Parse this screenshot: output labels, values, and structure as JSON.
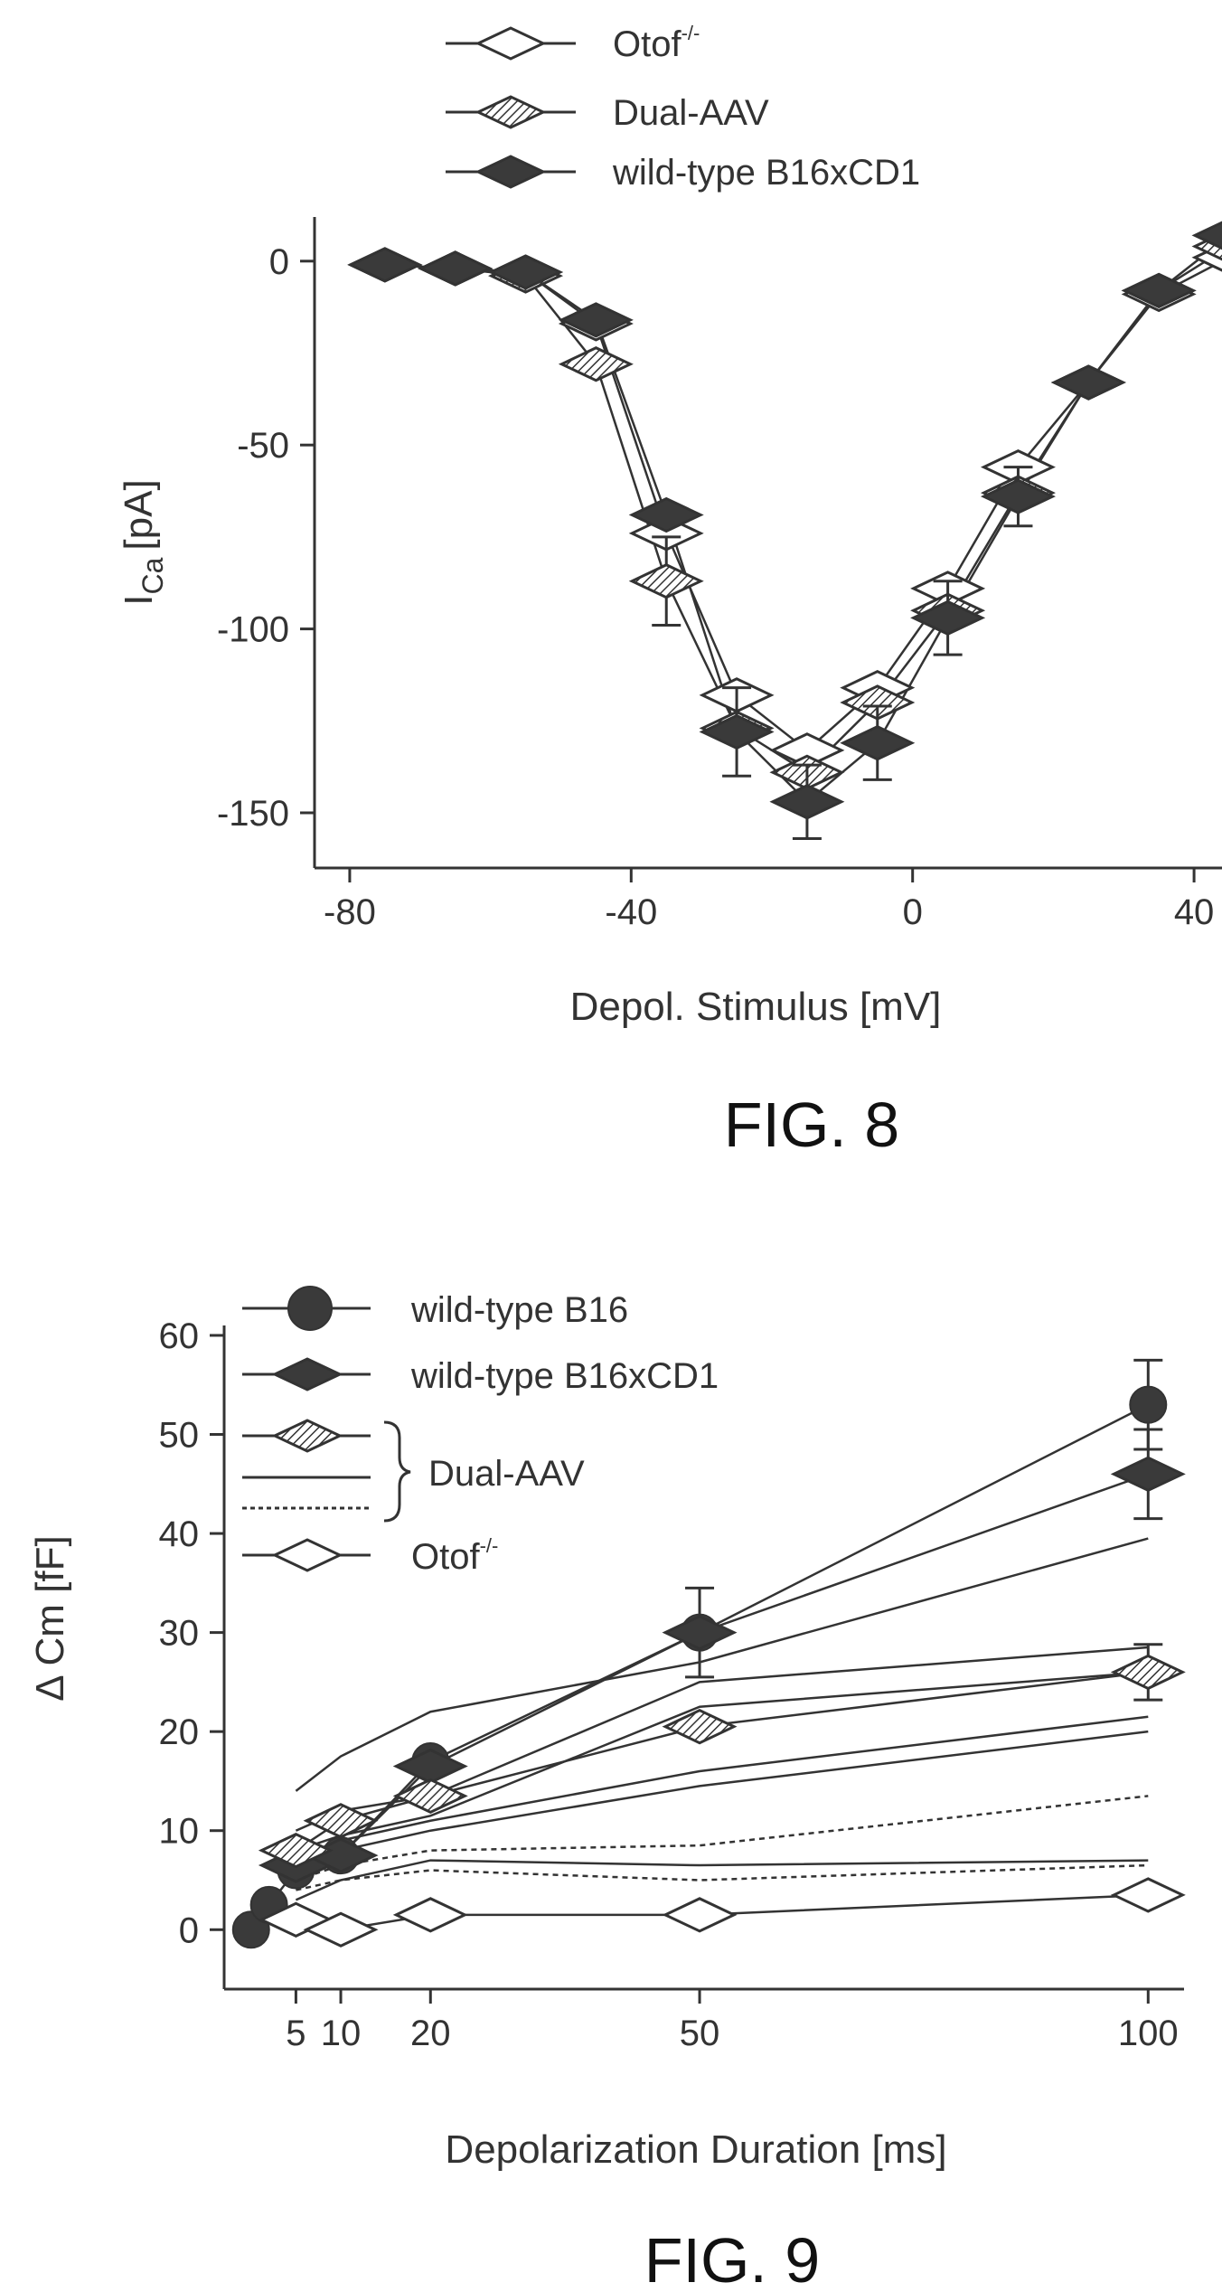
{
  "chart_data": [
    {
      "figure_label": "FIG. 8",
      "type": "line",
      "xlabel": "Depol. Stimulus [mV]",
      "ylabel_main": "I",
      "ylabel_sub": "Ca",
      "ylabel_unit": "[pA]",
      "xlim": [
        -85,
        45
      ],
      "ylim": [
        -165,
        12
      ],
      "xticks": [
        -80,
        -40,
        0,
        40
      ],
      "xtick_labels": [
        "-80",
        "-40",
        "0",
        "40"
      ],
      "yticks": [
        0,
        -50,
        -100,
        -150
      ],
      "ytick_labels": [
        "0",
        "-50",
        "-100",
        "-150"
      ],
      "grid": false,
      "legend_position": "top",
      "series": [
        {
          "name": "Otof",
          "name_sup": "-/-",
          "marker": "diamond-open",
          "x": [
            -75,
            -65,
            -55,
            -45,
            -35,
            -25,
            -15,
            -5,
            5,
            15,
            25,
            35,
            45
          ],
          "y": [
            -1,
            -2,
            -3,
            -17,
            -74,
            -118,
            -133,
            -116,
            -89,
            -56,
            -33,
            -9,
            1
          ],
          "yerr": [
            0,
            0,
            0,
            0,
            0,
            0,
            0,
            0,
            0,
            0,
            0,
            0,
            0
          ]
        },
        {
          "name": "Dual-AAV",
          "marker": "diamond-hatched",
          "x": [
            -75,
            -65,
            -55,
            -45,
            -35,
            -25,
            -15,
            -5,
            5,
            15,
            25,
            35,
            45
          ],
          "y": [
            -1,
            -2,
            -4,
            -28,
            -87,
            -127,
            -139,
            -120,
            -95,
            -63,
            -33,
            -8,
            4
          ],
          "yerr": [
            0,
            0,
            0,
            0,
            12,
            0,
            0,
            0,
            0,
            0,
            0,
            0,
            0
          ]
        },
        {
          "name": "wild-type B16xCD1",
          "marker": "diamond-filled",
          "x": [
            -75,
            -65,
            -55,
            -45,
            -35,
            -25,
            -15,
            -5,
            5,
            15,
            25,
            35,
            45
          ],
          "y": [
            -1,
            -2,
            -3,
            -16,
            -69,
            -128,
            -147,
            -131,
            -97,
            -64,
            -33,
            -8,
            7
          ],
          "yerr": [
            0,
            0,
            0,
            0,
            0,
            12,
            10,
            10,
            10,
            8,
            0,
            0,
            0
          ]
        }
      ]
    },
    {
      "figure_label": "FIG. 9",
      "type": "line",
      "xlabel": "Depolarization Duration [ms]",
      "ylabel": "Δ Cm [fF]",
      "xlim": [
        -3,
        104
      ],
      "ylim": [
        -6,
        61
      ],
      "xticks": [
        5,
        10,
        20,
        50,
        100
      ],
      "xtick_labels": [
        "5",
        "10",
        "20",
        "50",
        "100"
      ],
      "yticks": [
        0,
        10,
        20,
        30,
        40,
        50,
        60
      ],
      "ytick_labels": [
        "0",
        "10",
        "20",
        "30",
        "40",
        "50",
        "60"
      ],
      "grid": false,
      "legend_position": "top-left",
      "legend_brace_label": "Dual-AAV",
      "series": [
        {
          "name": "wild-type B16",
          "marker": "circle-filled",
          "x": [
            0,
            2,
            5,
            10,
            20,
            50,
            100
          ],
          "y": [
            0,
            2.5,
            6,
            7.5,
            17,
            30,
            53
          ],
          "yerr": [
            0,
            0,
            0,
            0,
            0,
            4.5,
            4.5
          ]
        },
        {
          "name": "wild-type B16xCD1",
          "marker": "diamond-filled",
          "x": [
            5,
            10,
            20,
            50,
            100
          ],
          "y": [
            6.5,
            7.5,
            16.5,
            30,
            46
          ],
          "yerr": [
            0,
            0,
            0,
            0,
            4.5
          ]
        },
        {
          "name": "Dual-AAV",
          "marker": "diamond-hatched",
          "x": [
            5,
            10,
            20,
            50,
            100
          ],
          "y": [
            8,
            11,
            13.5,
            20.5,
            26
          ],
          "yerr": [
            0,
            0,
            0,
            0,
            2.8
          ]
        },
        {
          "name": "",
          "line_style": "solid",
          "x": [
            5,
            10,
            20,
            50,
            100
          ],
          "y": [
            14,
            17.5,
            22,
            27,
            39.5
          ]
        },
        {
          "name": "",
          "line_style": "solid",
          "x": [
            5,
            10,
            20,
            50,
            100
          ],
          "y": [
            10,
            12,
            13.5,
            25,
            28.5
          ]
        },
        {
          "name": "",
          "line_style": "solid",
          "x": [
            5,
            10,
            20,
            50,
            100
          ],
          "y": [
            8,
            9.5,
            11.5,
            22.5,
            26
          ]
        },
        {
          "name": "",
          "line_style": "solid",
          "x": [
            5,
            10,
            20,
            50,
            100
          ],
          "y": [
            7,
            9,
            11,
            16,
            21.5
          ]
        },
        {
          "name": "",
          "line_style": "solid",
          "x": [
            5,
            10,
            20,
            50,
            100
          ],
          "y": [
            6,
            8,
            10,
            14.5,
            20
          ]
        },
        {
          "name": "",
          "line_style": "solid",
          "x": [
            5,
            10,
            20,
            50,
            100
          ],
          "y": [
            3,
            5,
            7,
            6.5,
            7
          ]
        },
        {
          "name": "",
          "line_style": "dashed",
          "x": [
            5,
            10,
            20,
            50,
            100
          ],
          "y": [
            5,
            6.5,
            8,
            8.5,
            13.5
          ]
        },
        {
          "name": "",
          "line_style": "dashed",
          "x": [
            5,
            10,
            20,
            50,
            100
          ],
          "y": [
            4,
            5,
            6,
            5,
            6.5
          ]
        },
        {
          "name": "Otof",
          "name_sup": "-/-",
          "marker": "diamond-open",
          "x": [
            5,
            10,
            20,
            50,
            100
          ],
          "y": [
            1,
            0,
            1.5,
            1.5,
            3.5
          ],
          "yerr": [
            0,
            0,
            0,
            0,
            0
          ]
        }
      ],
      "legend": [
        {
          "name": "wild-type B16",
          "marker": "circle-filled"
        },
        {
          "name": "wild-type B16xCD1",
          "marker": "diamond-filled"
        },
        {
          "name": "",
          "marker": "diamond-hatched",
          "group": "Dual-AAV"
        },
        {
          "name": "",
          "line_style": "solid",
          "group": "Dual-AAV"
        },
        {
          "name": "",
          "line_style": "dashed",
          "group": "Dual-AAV"
        },
        {
          "name": "Otof",
          "name_sup": "-/-",
          "marker": "diamond-open"
        }
      ]
    }
  ]
}
